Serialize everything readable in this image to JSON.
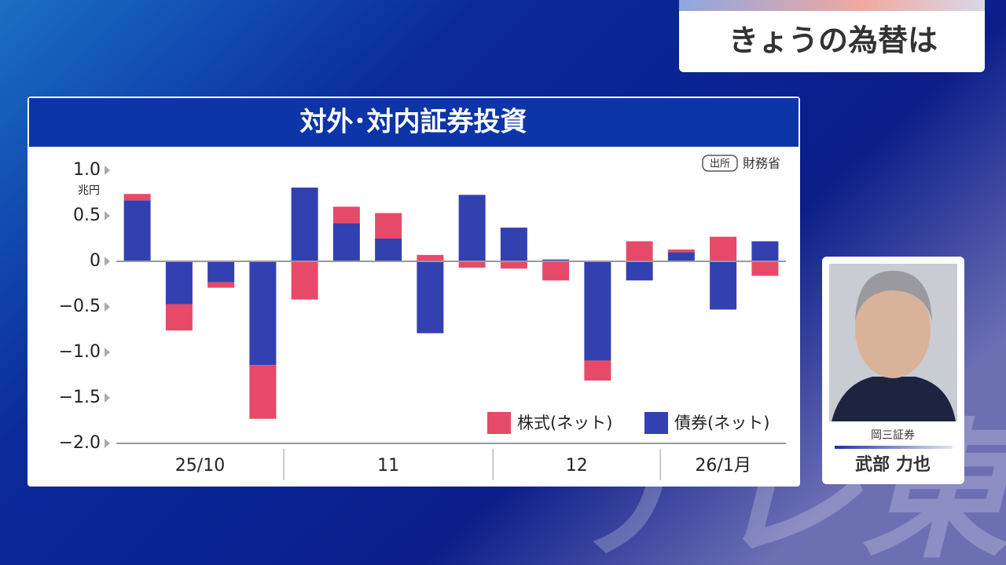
{
  "header": {
    "title": "きょうの為替は"
  },
  "watermark": "テレ東",
  "chart_data": {
    "type": "bar",
    "stacked": true,
    "title": "対外･対内証券投資",
    "unit_label": "兆円",
    "source_tag": "出所",
    "source": "財務省",
    "categories": [
      "25/10",
      "25/10",
      "25/10",
      "25/10",
      "11",
      "11",
      "11",
      "11",
      "11",
      "12",
      "12",
      "12",
      "12",
      "26/1月",
      "26/1月",
      "26/1月"
    ],
    "series": [
      {
        "name": "株式(ネット)",
        "color": "#e64a68",
        "values": [
          0.07,
          -0.29,
          -0.06,
          -0.59,
          -0.42,
          0.18,
          0.28,
          0.07,
          -0.07,
          -0.08,
          -0.21,
          -0.22,
          0.22,
          0.03,
          0.27,
          -0.16
        ]
      },
      {
        "name": "債券(ネット)",
        "color": "#3340b0",
        "values": [
          0.67,
          -0.47,
          -0.23,
          -1.14,
          0.81,
          0.42,
          0.25,
          -0.79,
          0.73,
          0.37,
          0.02,
          -1.09,
          -0.21,
          0.1,
          -0.53,
          0.22
        ]
      }
    ],
    "ylim": [
      -2,
      1
    ],
    "yticks": [
      {
        "value": 1,
        "label": "1.0"
      },
      0.5,
      0,
      {
        "value": -0.5,
        "label": "−0.5"
      },
      {
        "value": -1,
        "label": "−1.0"
      },
      {
        "value": -1.5,
        "label": "−1.5"
      },
      {
        "value": -2,
        "label": "−2.0"
      }
    ],
    "legend": "lower right"
  },
  "person": {
    "company": "岡三証券",
    "name": "武部 力也"
  }
}
